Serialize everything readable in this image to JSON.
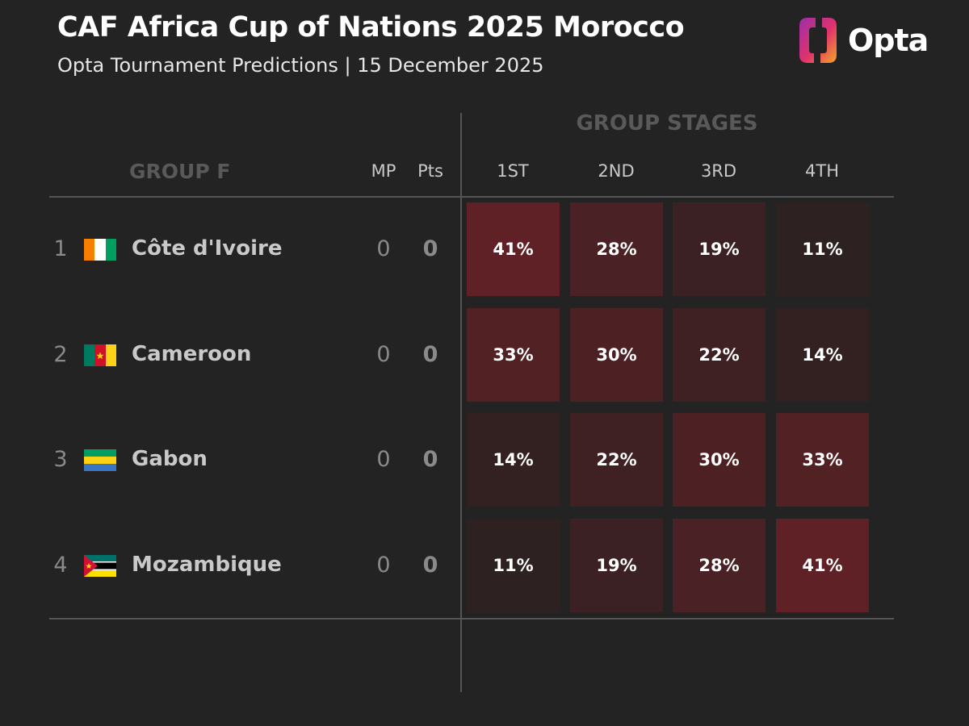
{
  "header": {
    "title": "CAF Africa Cup of Nations 2025 Morocco",
    "subtitle": "Opta Tournament Predictions | 15 December 2025",
    "logo_text": "Opta"
  },
  "table": {
    "super_header": "GROUP STAGES",
    "group_label": "GROUP F",
    "mp_label": "MP",
    "pts_label": "Pts",
    "position_labels": [
      "1ST",
      "2ND",
      "3RD",
      "4TH"
    ]
  },
  "rows": [
    {
      "rank": "1",
      "team": "Côte d'Ivoire",
      "flag": "ivory-coast-flag",
      "mp": "0",
      "pts": "0"
    },
    {
      "rank": "2",
      "team": "Cameroon",
      "flag": "cameroon-flag",
      "mp": "0",
      "pts": "0"
    },
    {
      "rank": "3",
      "team": "Gabon",
      "flag": "gabon-flag",
      "mp": "0",
      "pts": "0"
    },
    {
      "rank": "4",
      "team": "Mozambique",
      "flag": "mozambique-flag",
      "mp": "0",
      "pts": "0"
    }
  ],
  "chart_data": {
    "type": "heatmap",
    "columns": [
      "1ST",
      "2ND",
      "3RD",
      "4TH"
    ],
    "rows": [
      "Côte d'Ivoire",
      "Cameroon",
      "Gabon",
      "Mozambique"
    ],
    "values": [
      [
        41,
        28,
        19,
        11
      ],
      [
        33,
        30,
        22,
        14
      ],
      [
        14,
        22,
        30,
        33
      ],
      [
        11,
        19,
        28,
        41
      ]
    ],
    "labels": [
      [
        "41%",
        "28%",
        "19%",
        "11%"
      ],
      [
        "33%",
        "30%",
        "22%",
        "14%"
      ],
      [
        "14%",
        "22%",
        "30%",
        "33%"
      ],
      [
        "11%",
        "19%",
        "28%",
        "41%"
      ]
    ],
    "color_low": "#2e2122",
    "color_high": "#5f2125"
  },
  "colors": {
    "background": "#232323",
    "logo_gradient_start": "#9b2fa8",
    "logo_gradient_end": "#f5a623"
  }
}
